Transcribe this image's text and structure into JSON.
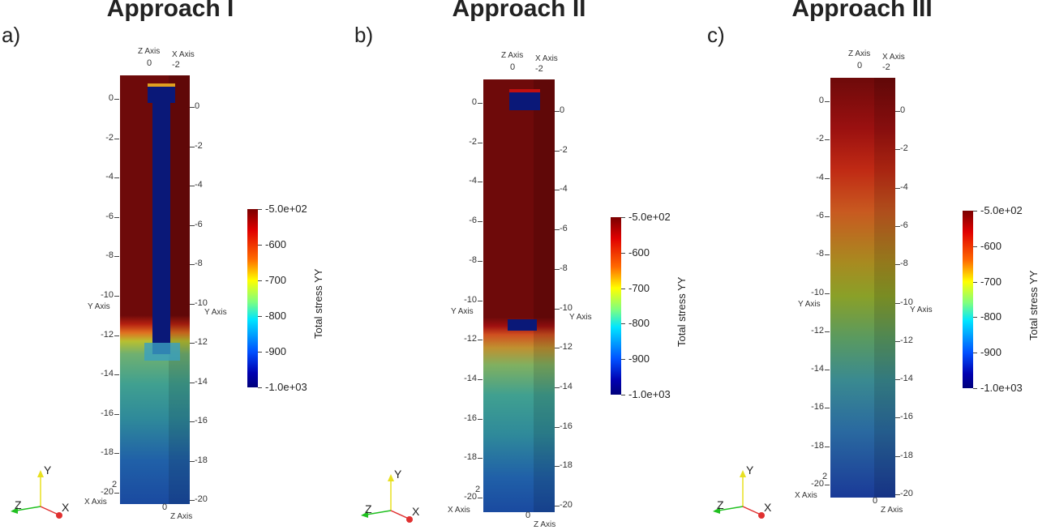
{
  "panels": [
    {
      "label": "a)",
      "title": "Approach I"
    },
    {
      "label": "b)",
      "title": "Approach II"
    },
    {
      "label": "c)",
      "title": "Approach III"
    }
  ],
  "axes": {
    "y_axis_name": "Y Axis",
    "x_axis_name": "X Axis",
    "z_axis_name": "Z Axis",
    "top_z_tick": "0",
    "top_x_tick": "-2",
    "bottom_x_tick": "2",
    "bottom_z_tick": "0",
    "y_ticks": [
      "0",
      "-2",
      "-4",
      "-6",
      "-8",
      "-10",
      "-12",
      "-14",
      "-16",
      "-18",
      "-20"
    ]
  },
  "colorbar": {
    "title": "Total stress YY",
    "labels": [
      "-5.0e+02",
      "-600",
      "-700",
      "-800",
      "-900",
      "-1.0e+03"
    ],
    "range": [
      -1000,
      -500
    ],
    "colormap": "rainbow (blue to dark red)"
  },
  "triad": {
    "x": "X",
    "y": "Y",
    "z": "Z",
    "colors": {
      "x": "#e03030",
      "y": "#e8e020",
      "z": "#20c020"
    }
  }
}
